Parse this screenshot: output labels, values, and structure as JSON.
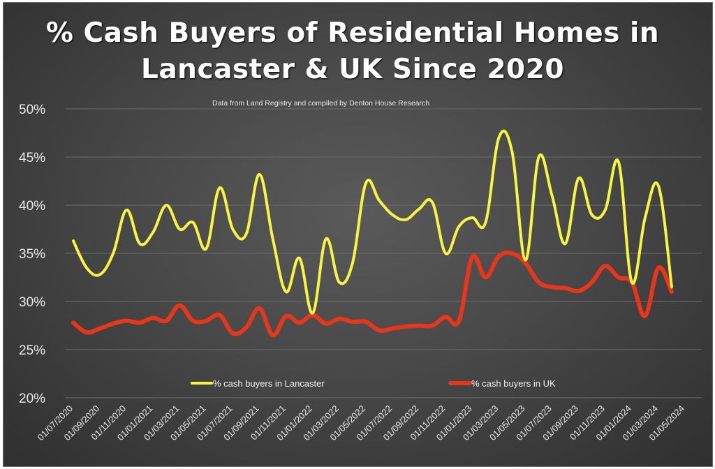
{
  "chart_data": {
    "type": "line",
    "title": "% Cash Buyers of Residential Homes in Lancaster & UK Since 2020",
    "subtitle": "Data from Land Registry and compiled by Denton House Research",
    "y_tick_labels": [
      "20%",
      "25%",
      "30%",
      "35%",
      "40%",
      "45%",
      "50%"
    ],
    "ylim": [
      20,
      50
    ],
    "x_tick_labels": [
      "01/07/2020",
      "01/09/2020",
      "01/11/2020",
      "01/01/2021",
      "01/03/2021",
      "01/05/2021",
      "01/07/2021",
      "01/09/2021",
      "01/11/2021",
      "01/01/2022",
      "01/03/2022",
      "01/05/2022",
      "01/07/2022",
      "01/09/2022",
      "01/11/2022",
      "01/01/2023",
      "01/03/2023",
      "01/05/2023",
      "01/07/2023",
      "01/09/2023",
      "01/11/2023",
      "01/01/2024",
      "01/03/2024",
      "01/05/2024"
    ],
    "x": [
      "07/2020",
      "08/2020",
      "09/2020",
      "10/2020",
      "11/2020",
      "12/2020",
      "01/2021",
      "02/2021",
      "03/2021",
      "04/2021",
      "05/2021",
      "06/2021",
      "07/2021",
      "08/2021",
      "09/2021",
      "10/2021",
      "11/2021",
      "12/2021",
      "01/2022",
      "02/2022",
      "03/2022",
      "04/2022",
      "05/2022",
      "06/2022",
      "07/2022",
      "08/2022",
      "09/2022",
      "10/2022",
      "11/2022",
      "12/2022",
      "01/2023",
      "02/2023",
      "03/2023",
      "04/2023",
      "05/2023",
      "06/2023",
      "07/2023",
      "08/2023",
      "09/2023",
      "10/2023",
      "11/2023",
      "12/2023",
      "01/2024",
      "02/2024",
      "03/2024",
      "04/2024"
    ],
    "grid": true,
    "legend_position": "bottom",
    "series": [
      {
        "name": "% cash buyers in Lancaster",
        "color": "#f5f542",
        "values": [
          36.3,
          33.5,
          32.8,
          35.0,
          39.5,
          36.0,
          37.2,
          40.0,
          37.5,
          38.2,
          35.5,
          41.8,
          37.5,
          37.0,
          43.2,
          36.5,
          31.0,
          34.5,
          28.8,
          36.5,
          32.0,
          34.0,
          42.3,
          40.5,
          39.0,
          38.5,
          39.6,
          40.3,
          35.0,
          37.8,
          38.7,
          38.2,
          47.0,
          45.5,
          34.3,
          45.0,
          41.0,
          36.0,
          42.8,
          39.0,
          39.5,
          44.5,
          32.0,
          38.7,
          42.0,
          31.5
        ]
      },
      {
        "name": "% cash buyers in UK",
        "color": "#e8361a",
        "values": [
          27.8,
          26.8,
          27.2,
          27.7,
          28.0,
          27.8,
          28.3,
          28.0,
          29.6,
          28.0,
          28.0,
          28.6,
          26.7,
          27.3,
          29.3,
          26.5,
          28.5,
          27.8,
          28.6,
          27.7,
          28.2,
          27.9,
          27.9,
          27.0,
          27.2,
          27.4,
          27.5,
          27.5,
          28.4,
          28.0,
          34.6,
          32.5,
          34.7,
          35.0,
          34.0,
          32.0,
          31.5,
          31.4,
          31.1,
          32.0,
          33.7,
          32.5,
          32.0,
          28.5,
          33.5,
          31.0
        ]
      }
    ]
  }
}
